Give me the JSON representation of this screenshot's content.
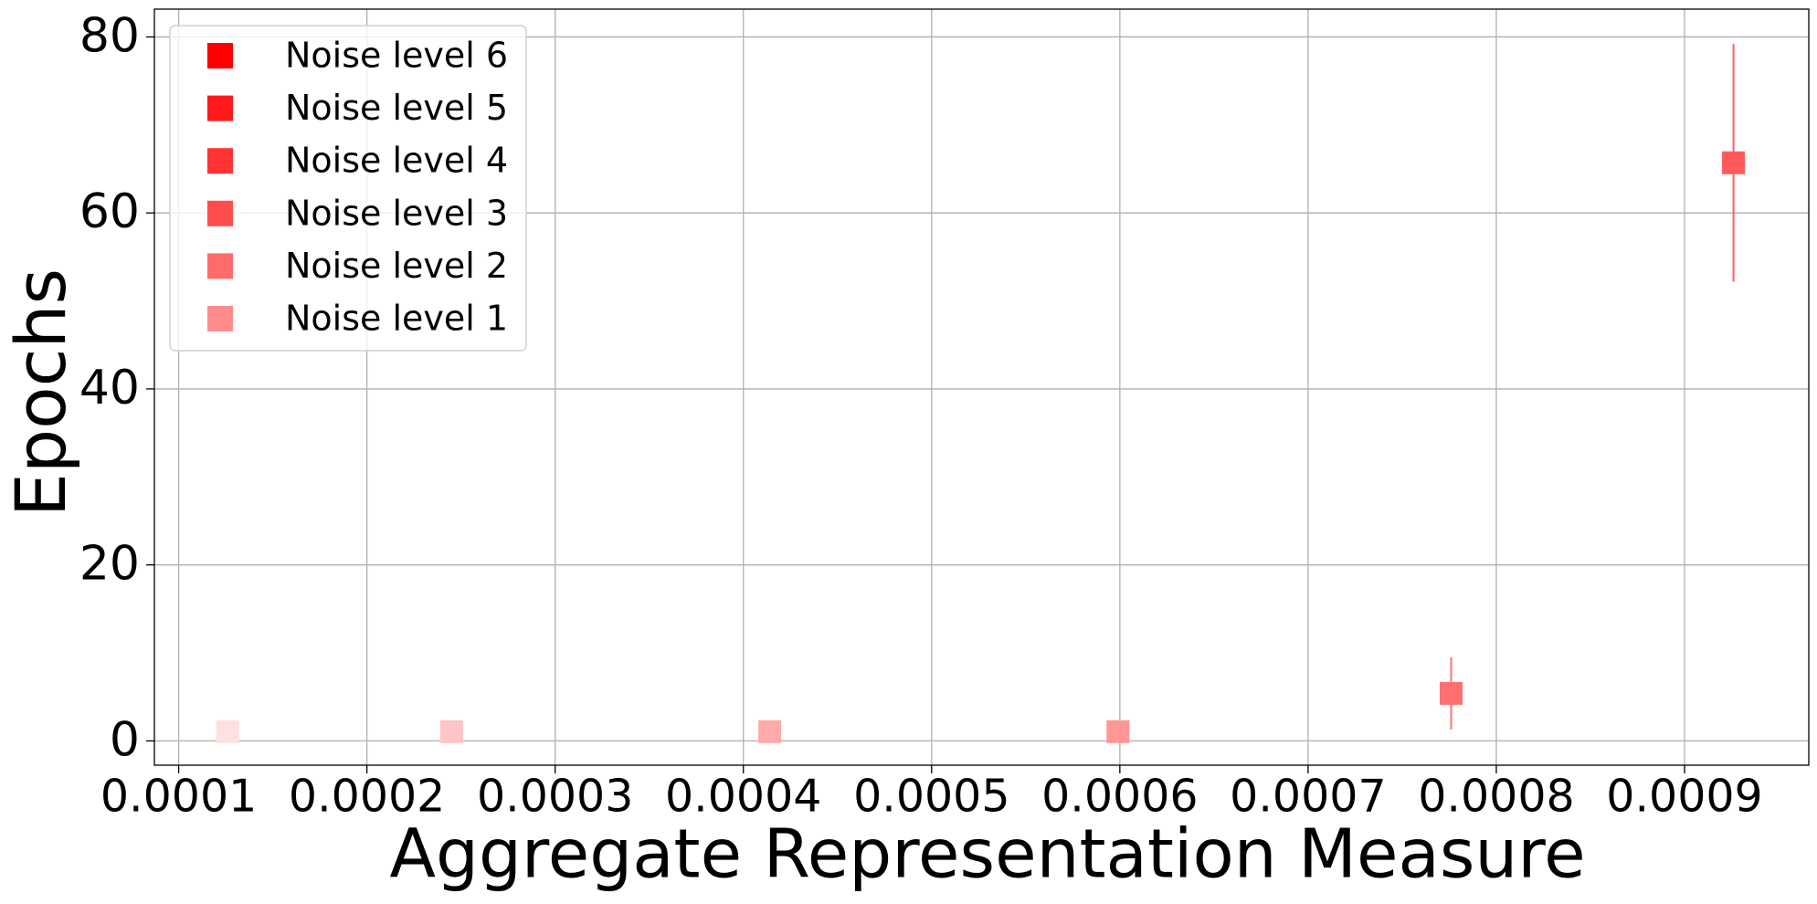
{
  "chart_data": {
    "type": "scatter",
    "xlabel": "Aggregate Representation Measure",
    "ylabel": "Epochs",
    "xlim": [
      8.71e-05,
      0.000966
    ],
    "ylim": [
      -2.76,
      83.16
    ],
    "xticks": [
      0.0001,
      0.0002,
      0.0003,
      0.0004,
      0.0005,
      0.0006,
      0.0007,
      0.0008,
      0.0009
    ],
    "yticks": [
      0,
      20,
      40,
      60,
      80
    ],
    "grid": true,
    "legend": "upper left",
    "series": [
      {
        "name": "Noise level 6",
        "color": "#ff0000",
        "marker_color": "#ff5a5a",
        "x": [
          0.000926
        ],
        "values": [
          65.7
        ],
        "errors": [
          13.5
        ]
      },
      {
        "name": "Noise level 5",
        "color": "#ff1a1a",
        "marker_color": "#ff7070",
        "x": [
          0.000776
        ],
        "values": [
          5.4
        ],
        "errors": [
          4.1
        ]
      },
      {
        "name": "Noise level 4",
        "color": "#ff3333",
        "marker_color": "#ff9797",
        "x": [
          0.000599
        ],
        "values": [
          1.05
        ],
        "errors": [
          0.3
        ]
      },
      {
        "name": "Noise level 3",
        "color": "#ff4d4d",
        "marker_color": "#ffaaaa",
        "x": [
          0.000414
        ],
        "values": [
          1.05
        ],
        "errors": [
          0.3
        ]
      },
      {
        "name": "Noise level 2",
        "color": "#ff6b6b",
        "marker_color": "#ffc4c4",
        "x": [
          0.000245
        ],
        "values": [
          1.05
        ],
        "errors": [
          0.3
        ]
      },
      {
        "name": "Noise level 1",
        "color": "#ff8c8c",
        "marker_color": "#ffe0e0",
        "x": [
          0.000126
        ],
        "values": [
          1.05
        ],
        "errors": [
          0.3
        ]
      }
    ]
  }
}
